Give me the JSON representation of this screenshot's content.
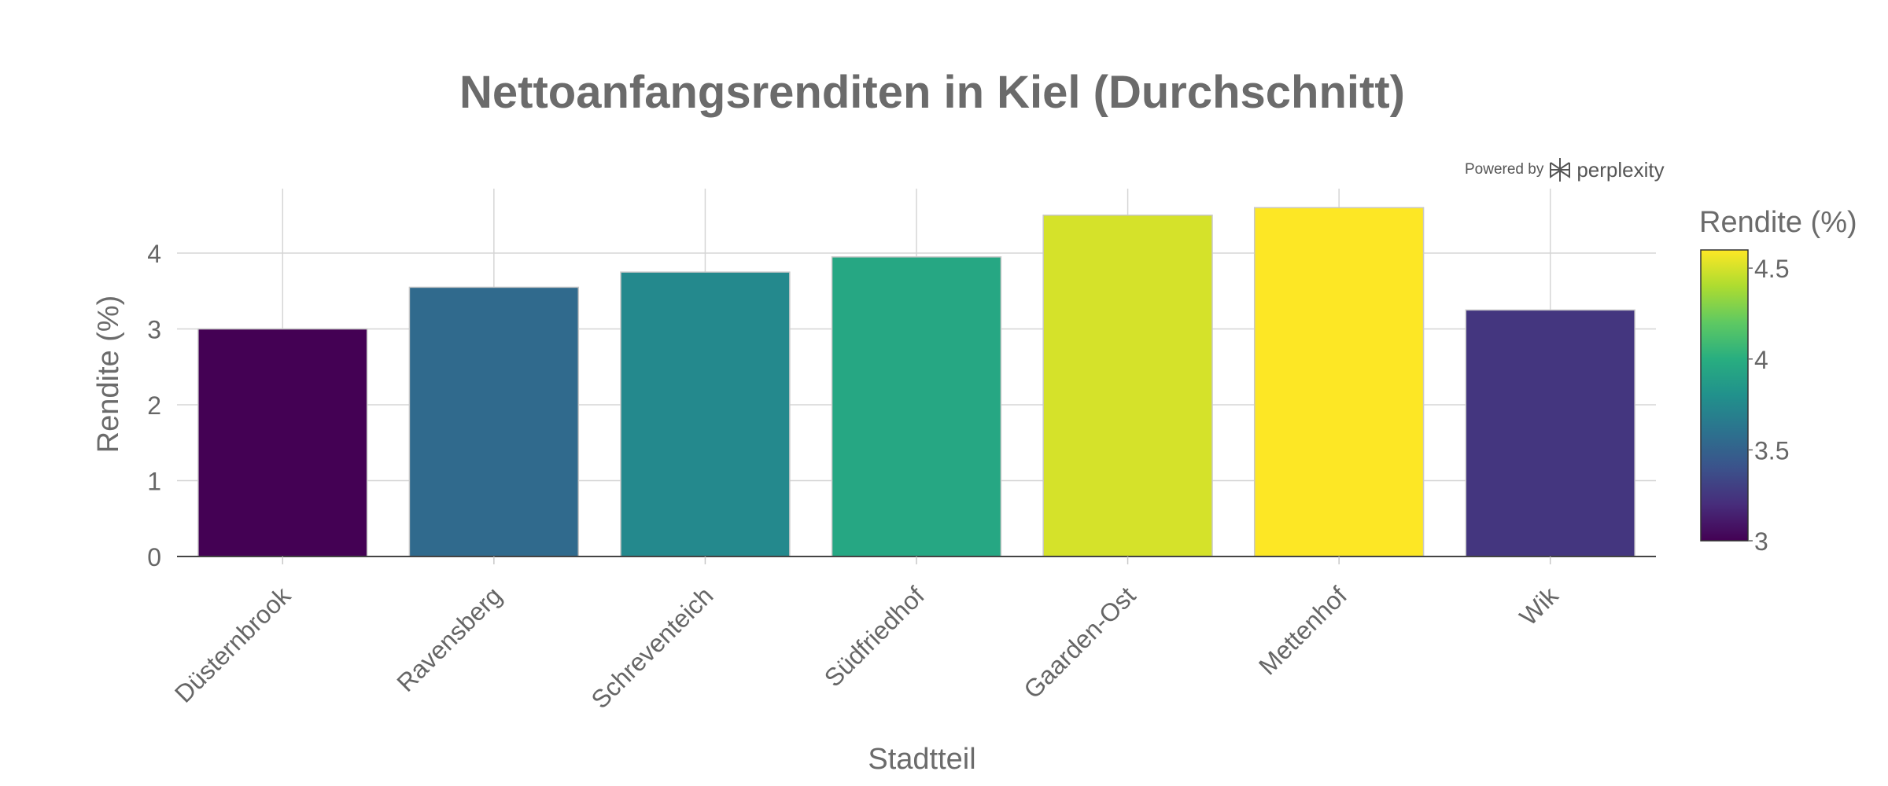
{
  "chart_data": {
    "type": "bar",
    "title": "Nettoanfangsrenditen in Kiel (Durchschnitt)",
    "xlabel": "Stadtteil",
    "ylabel": "Rendite (%)",
    "categories": [
      "Düsternbrook",
      "Ravensberg",
      "Schreventeich",
      "Südfriedhof",
      "Gaarden-Ost",
      "Mettenhof",
      "Wik"
    ],
    "values": [
      3.0,
      3.55,
      3.75,
      3.95,
      4.5,
      4.6,
      3.25
    ],
    "ylim": [
      0,
      4.85
    ],
    "yticks": [
      0,
      1,
      2,
      3,
      4
    ],
    "grid": true,
    "colorscale": "viridis",
    "colorbar": {
      "title": "Rendite (%)",
      "range": [
        3.0,
        4.6
      ],
      "ticks": [
        3,
        3.5,
        4,
        4.5
      ],
      "tick_labels": [
        "3",
        "3.5",
        "4",
        "4.5"
      ]
    }
  },
  "watermark": {
    "prefix": "Powered by",
    "brand": "perplexity"
  }
}
